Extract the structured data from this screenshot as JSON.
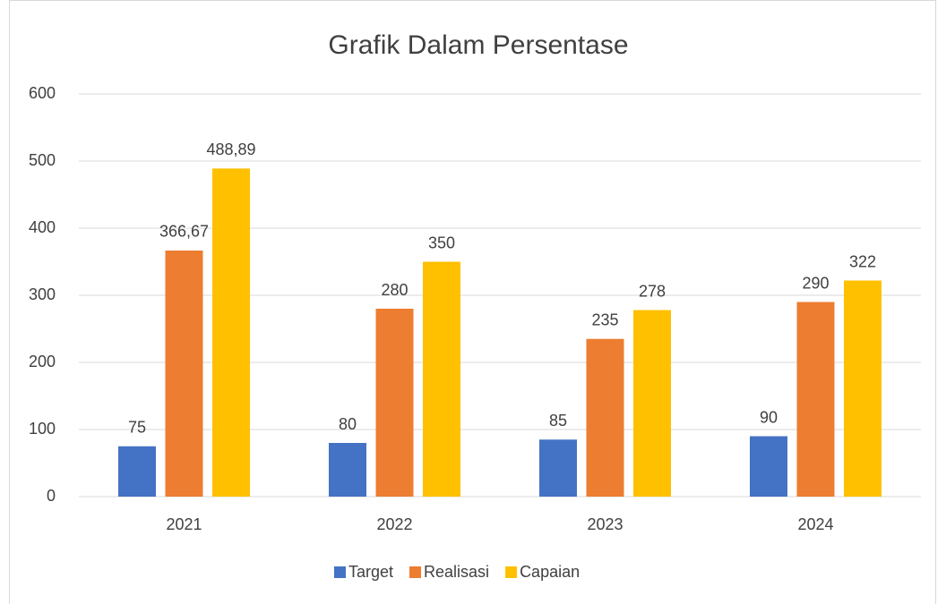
{
  "chart_data": {
    "type": "bar",
    "title": "Grafik Dalam Persentase",
    "categories": [
      "2021",
      "2022",
      "2023",
      "2024"
    ],
    "series": [
      {
        "name": "Target",
        "color": "#4472c4",
        "values": [
          75,
          80,
          85,
          90
        ]
      },
      {
        "name": "Realisasi",
        "color": "#ed7d31",
        "values": [
          366.67,
          280,
          235,
          290
        ],
        "value_labels": [
          "366,67",
          "280",
          "235",
          "290"
        ]
      },
      {
        "name": "Capaian",
        "color": "#ffc000",
        "values": [
          488.89,
          350,
          278,
          322
        ],
        "value_labels": [
          "488,89",
          "350",
          "278",
          "322"
        ]
      }
    ],
    "ylim": [
      0,
      600
    ],
    "yticks": [
      0,
      100,
      200,
      300,
      400,
      500,
      600
    ],
    "grid": true,
    "legend": "bottom"
  }
}
